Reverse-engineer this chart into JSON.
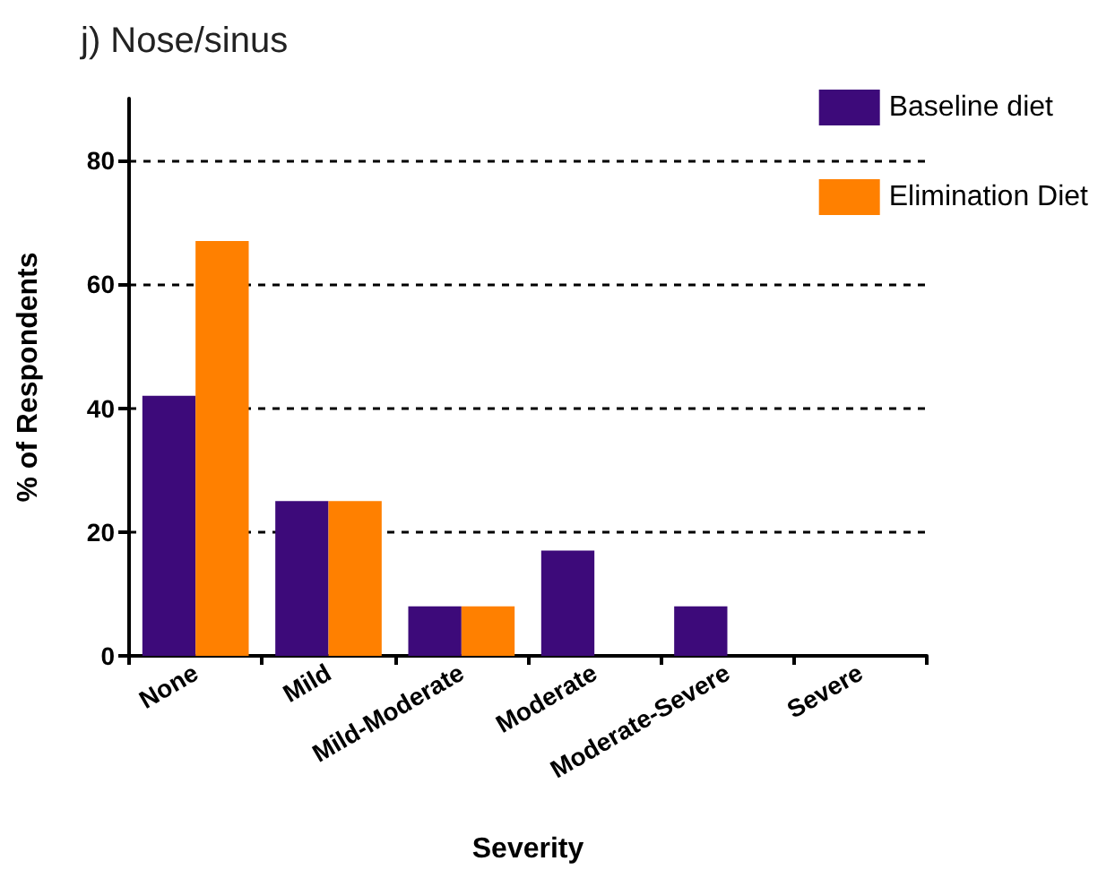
{
  "chart_data": {
    "type": "bar",
    "title": "j) Nose/sinus",
    "xlabel": "Severity",
    "ylabel": "% of Respondents",
    "categories": [
      "None",
      "Mild",
      "Mild-Moderate",
      "Moderate",
      "Moderate-Severe",
      "Severe"
    ],
    "series": [
      {
        "name": "Baseline diet",
        "color": "#3d0a7a",
        "values": [
          42,
          25,
          8,
          17,
          8,
          0
        ]
      },
      {
        "name": "Elimination Diet",
        "color": "#ff8000",
        "values": [
          67,
          25,
          8,
          0,
          0,
          0
        ]
      }
    ],
    "ylim": [
      0,
      90
    ],
    "yticks": [
      0,
      20,
      40,
      60,
      80
    ],
    "grid": "y",
    "legend": "top right"
  }
}
